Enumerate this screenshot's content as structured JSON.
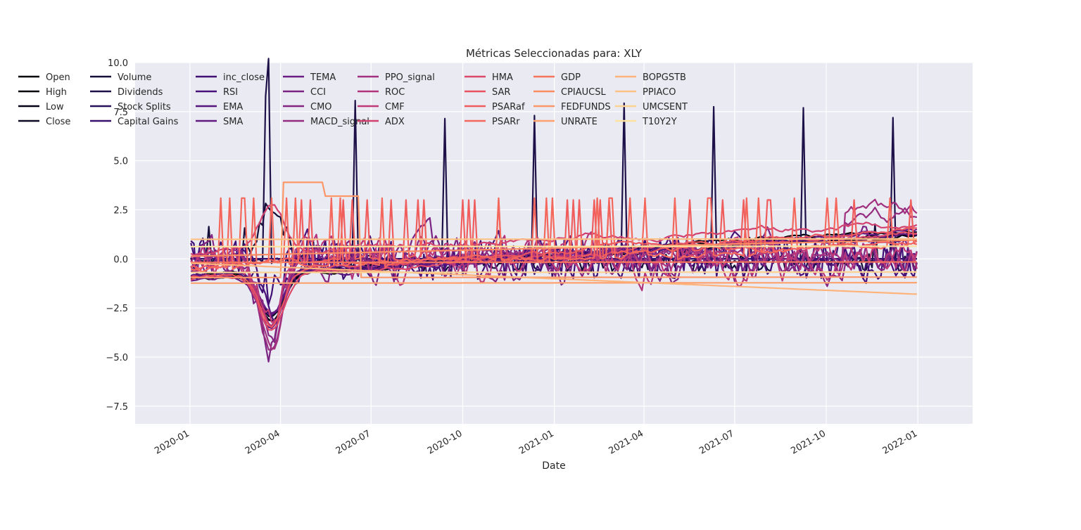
{
  "chart_data": {
    "type": "line",
    "title": "Métricas Seleccionadas para: XLY",
    "xlabel": "Date",
    "ylabel": "",
    "x_range": [
      "2019-11-07",
      "2022-02-25"
    ],
    "ylim": [
      -8.4,
      10.0
    ],
    "yticks": [
      -7.5,
      -5.0,
      -2.5,
      0.0,
      2.5,
      5.0,
      7.5,
      10.0
    ],
    "ytick_labels": [
      "−7.5",
      "−5.0",
      "−2.5",
      "0.0",
      "2.5",
      "5.0",
      "7.5",
      "10.0"
    ],
    "xticks": [
      "2020-01-01",
      "2020-04-01",
      "2020-07-01",
      "2020-10-01",
      "2021-01-01",
      "2021-04-01",
      "2021-07-01",
      "2021-10-01",
      "2022-01-01"
    ],
    "xtick_labels": [
      "2020-01",
      "2020-04",
      "2020-07",
      "2020-10",
      "2021-01",
      "2021-04",
      "2021-07",
      "2021-10",
      "2022-01"
    ],
    "grid": true,
    "style": "seaborn-darkgrid",
    "colormap": "magma",
    "legend_placement": "top-left, 10 columns",
    "series": [
      {
        "name": "Open",
        "color": "#000004",
        "kind": "price",
        "params": [
          0.0,
          0.55
        ]
      },
      {
        "name": "High",
        "color": "#020109",
        "kind": "price",
        "params": [
          0.05,
          0.55
        ]
      },
      {
        "name": "Low",
        "color": "#050416",
        "kind": "price",
        "params": [
          -0.05,
          0.55
        ]
      },
      {
        "name": "Close",
        "color": "#0b0924",
        "kind": "price",
        "params": [
          0.02,
          0.55
        ]
      },
      {
        "name": "Volume",
        "color": "#150e38",
        "kind": "volume",
        "params": [
          -0.2,
          0.6
        ]
      },
      {
        "name": "Dividends",
        "color": "#1e1149",
        "kind": "spikes",
        "params": [
          -0.1,
          0.3
        ]
      },
      {
        "name": "Stock Splits",
        "color": "#2a115e",
        "kind": "flat",
        "params": [
          0.0,
          0.0
        ]
      },
      {
        "name": "Capital Gains",
        "color": "#36106b",
        "kind": "flat",
        "params": [
          0.01,
          0.0
        ]
      },
      {
        "name": "inc_close",
        "color": "#400f74",
        "kind": "noise",
        "params": [
          0.0,
          0.9
        ]
      },
      {
        "name": "RSI",
        "color": "#4a1079",
        "kind": "osc",
        "params": [
          0.2,
          1.0
        ]
      },
      {
        "name": "EMA",
        "color": "#57157e",
        "kind": "price",
        "params": [
          -0.1,
          0.5
        ]
      },
      {
        "name": "SMA",
        "color": "#621980",
        "kind": "price",
        "params": [
          0.1,
          0.5
        ]
      },
      {
        "name": "TEMA",
        "color": "#6a1c81",
        "kind": "price",
        "params": [
          0.0,
          0.6
        ]
      },
      {
        "name": "CCI",
        "color": "#7a2382",
        "kind": "osc",
        "params": [
          0.0,
          1.2
        ]
      },
      {
        "name": "CMO",
        "color": "#842681",
        "kind": "osc",
        "params": [
          0.1,
          1.0
        ]
      },
      {
        "name": "MACD_signal",
        "color": "#952c80",
        "kind": "macd",
        "params": [
          0.0,
          1.0
        ]
      },
      {
        "name": "PPO_signal",
        "color": "#a1307e",
        "kind": "macd",
        "params": [
          0.2,
          1.0
        ]
      },
      {
        "name": "ROC",
        "color": "#b2357b",
        "kind": "osc",
        "params": [
          -0.1,
          1.1
        ]
      },
      {
        "name": "CMF",
        "color": "#bf3a77",
        "kind": "osc",
        "params": [
          0.1,
          0.8
        ]
      },
      {
        "name": "ADX",
        "color": "#d0416f",
        "kind": "adx",
        "params": [
          0.3,
          1.0
        ]
      },
      {
        "name": "HMA",
        "color": "#dc4869",
        "kind": "price",
        "params": [
          0.0,
          0.6
        ]
      },
      {
        "name": "SAR",
        "color": "#e8535f",
        "kind": "price",
        "params": [
          0.15,
          0.6
        ]
      },
      {
        "name": "PSARaf",
        "color": "#ef5d5d",
        "kind": "psar",
        "params": [
          -0.4,
          3.0
        ]
      },
      {
        "name": "PSARr",
        "color": "#f4675c",
        "kind": "psar",
        "params": [
          -0.5,
          3.1
        ]
      },
      {
        "name": "GDP",
        "color": "#f7755c",
        "kind": "step",
        "params": [
          1
        ]
      },
      {
        "name": "CPIAUCSL",
        "color": "#fa8b63",
        "kind": "step",
        "params": [
          2
        ]
      },
      {
        "name": "FEDFUNDS",
        "color": "#fb9768",
        "kind": "step",
        "params": [
          3
        ]
      },
      {
        "name": "UNRATE",
        "color": "#fda26e",
        "kind": "step",
        "params": [
          4
        ]
      },
      {
        "name": "BOPGSTB",
        "color": "#feb37b",
        "kind": "step",
        "params": [
          5
        ]
      },
      {
        "name": "PPIACO",
        "color": "#fec185",
        "kind": "step",
        "params": [
          6
        ]
      },
      {
        "name": "UMCSENT",
        "color": "#fdd292",
        "kind": "step",
        "params": [
          7
        ]
      },
      {
        "name": "T10Y2Y",
        "color": "#fde2a0",
        "kind": "step",
        "params": [
          8
        ]
      }
    ]
  }
}
